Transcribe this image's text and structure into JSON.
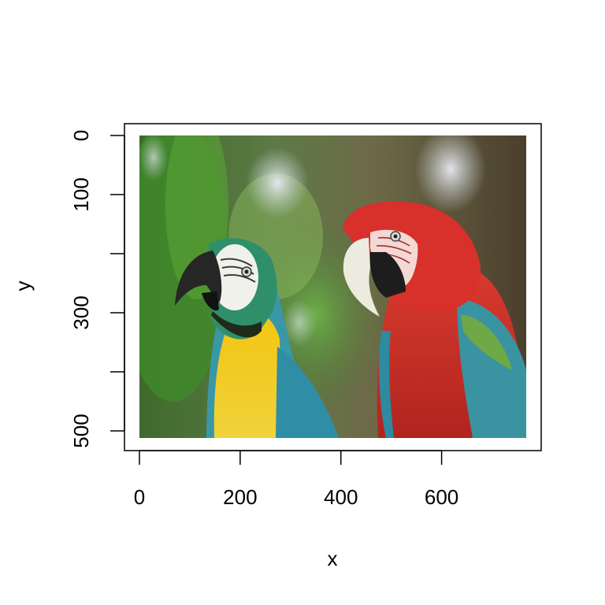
{
  "plot": {
    "xlabel": "x",
    "ylabel": "y",
    "x_ticks": [
      {
        "value": 0,
        "label": "0"
      },
      {
        "value": 200,
        "label": "200"
      },
      {
        "value": 400,
        "label": "400"
      },
      {
        "value": 600,
        "label": "600"
      }
    ],
    "y_ticks": [
      {
        "value": 0,
        "label": "0"
      },
      {
        "value": 100,
        "label": "100"
      },
      {
        "value": 200,
        "label": ""
      },
      {
        "value": 300,
        "label": "300"
      },
      {
        "value": 400,
        "label": ""
      },
      {
        "value": 500,
        "label": "500"
      }
    ],
    "xlim": [
      0,
      768
    ],
    "ylim": [
      0,
      512
    ],
    "y_reversed": true,
    "image_subject": "two macaws"
  },
  "colors": {
    "background": "#ffffff",
    "axis": "#000000"
  }
}
